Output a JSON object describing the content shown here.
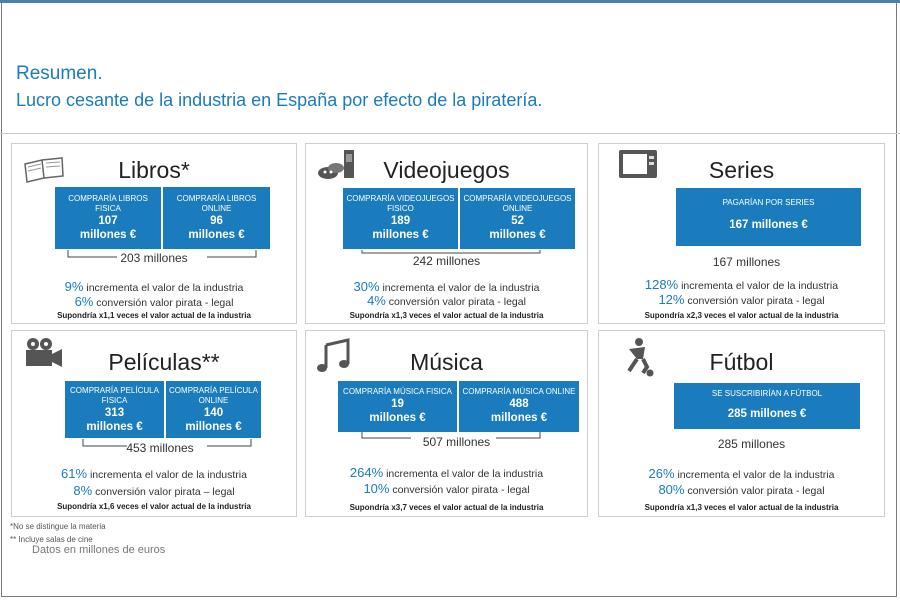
{
  "header": {
    "title": "Resumen.",
    "subtitle": "Lucro cesante de la industria en España por efecto de la piratería."
  },
  "cards": [
    {
      "title": "Libros*",
      "icon": "book-icon",
      "boxes": [
        {
          "label": "COMPRARÍA LIBROS FISICA",
          "value": "107",
          "unit": "millones €"
        },
        {
          "label": "COMPRARÍA LIBROS ONLINE",
          "value": "96",
          "unit": "millones €"
        }
      ],
      "total": "203 millones",
      "increase_pct": "9%",
      "increase_text": "incrementa el valor de la industria",
      "conversion_pct": "6%",
      "conversion_text": "conversión valor pirata - legal",
      "note": "Supondría x1,1 veces el valor actual de la industria"
    },
    {
      "title": "Videojuegos",
      "icon": "gamepad-icon",
      "boxes": [
        {
          "label": "COMPRARÍA VIDEOJUEGOS FISICO",
          "value": "189",
          "unit": "millones €"
        },
        {
          "label": "COMPRARÍA VIDEOJUEGOS ONLINE",
          "value": "52",
          "unit": "millones €"
        }
      ],
      "total": "242 millones",
      "increase_pct": "30%",
      "increase_text": "incrementa el valor de la industria",
      "conversion_pct": "4%",
      "conversion_text": "conversión valor pirata - legal",
      "note": "Supondría x1,3 veces el valor actual de la industria"
    },
    {
      "title": "Series",
      "icon": "tv-icon",
      "boxes": [
        {
          "label": "PAGARÍAN POR SERIES",
          "value": "167 millones €",
          "unit": ""
        }
      ],
      "total": "167 millones",
      "increase_pct": "128%",
      "increase_text": "incrementa el valor de la industria",
      "conversion_pct": "12%",
      "conversion_text": "conversión valor pirata - legal",
      "note": "Supondría x2,3 veces el valor actual de la industria"
    },
    {
      "title": "Películas**",
      "icon": "movie-camera-icon",
      "boxes": [
        {
          "label": "COMPRARÍA PELÍCULA FISICA",
          "value": "313",
          "unit": "millones €"
        },
        {
          "label": "COMPRARÍA PELÍCULA ONLINE",
          "value": "140",
          "unit": "millones €"
        }
      ],
      "total": "453 millones",
      "increase_pct": "61%",
      "increase_text": "incrementa el valor de la industria",
      "conversion_pct": "8%",
      "conversion_text": "conversión valor pirata – legal",
      "note": "Supondría x1,6 veces el valor actual de la industria"
    },
    {
      "title": "Música",
      "icon": "music-note-icon",
      "boxes": [
        {
          "label": "COMPRARÍA MÚSICA FISICA",
          "value": "19",
          "unit": "millones €"
        },
        {
          "label": "COMPRARÍA MÚSICA ONLINE",
          "value": "488",
          "unit": "millones €"
        }
      ],
      "total": "507 millones",
      "increase_pct": "264%",
      "increase_text": "incrementa el valor de la industria",
      "conversion_pct": "10%",
      "conversion_text": "conversión valor pirata - legal",
      "note": "Supondría x3,7 veces el valor actual de la industria"
    },
    {
      "title": "Fútbol",
      "icon": "soccer-player-icon",
      "boxes": [
        {
          "label": "SE SUSCRIBIRÍAN A FÚTBOL",
          "value": "285 millones €",
          "unit": ""
        }
      ],
      "total": "285 millones",
      "increase_pct": "26%",
      "increase_text": "incrementa el valor de la industria",
      "conversion_pct": "80%",
      "conversion_text": "conversión valor pirata - legal",
      "note": "Supondría x1,3 veces el valor actual de la industria"
    }
  ],
  "footnotes": {
    "note1": "*No se distingue la materia",
    "note2": "** Incluye salas de cine",
    "note3": "Datos en millones de euros"
  },
  "colors": {
    "accent": "#1a7bbd",
    "border": "#cfcfcf",
    "text": "#333333"
  }
}
